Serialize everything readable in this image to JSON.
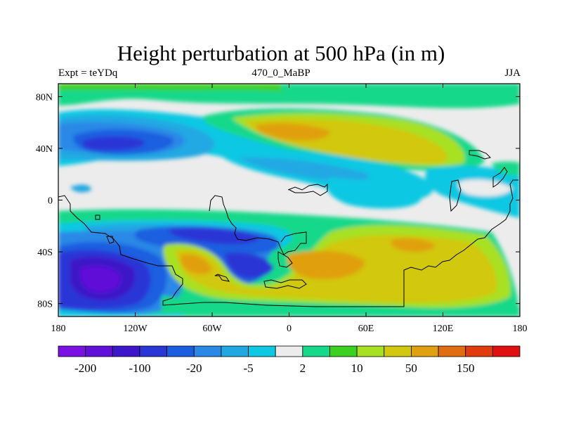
{
  "header": {
    "title": "Height perturbation at 500 hPa (in m)",
    "left_label": "Expt = teYDq",
    "center_label": "470_0_MaBP",
    "right_label": "JJA"
  },
  "map": {
    "projection": "cylindrical-equidistant",
    "lon_range": [
      -180,
      180
    ],
    "lat_range": [
      -90,
      90
    ],
    "x_ticks": [
      {
        "lon": -180,
        "label": "180"
      },
      {
        "lon": -120,
        "label": "120W"
      },
      {
        "lon": -60,
        "label": "60W"
      },
      {
        "lon": 0,
        "label": "0"
      },
      {
        "lon": 60,
        "label": "60E"
      },
      {
        "lon": 120,
        "label": "120E"
      },
      {
        "lon": 180,
        "label": "180"
      }
    ],
    "y_ticks": [
      {
        "lat": 80,
        "label": "80N"
      },
      {
        "lat": 40,
        "label": "40N"
      },
      {
        "lat": 0,
        "label": "0"
      },
      {
        "lat": -40,
        "label": "40S"
      },
      {
        "lat": -80,
        "label": "80S"
      }
    ],
    "coastline_color": "#000000"
  },
  "colorbar": {
    "colors": [
      "#7a10e4",
      "#6010d8",
      "#3c16c8",
      "#2a36d6",
      "#1c5ee0",
      "#2a88e6",
      "#20a8e2",
      "#10c8e2",
      "#ececec",
      "#14d88a",
      "#3cd020",
      "#a8e024",
      "#d2c810",
      "#e0a010",
      "#e06e10",
      "#e03c10",
      "#e01010"
    ],
    "labels": [
      "-200",
      "-100",
      "-20",
      "-5",
      "2",
      "10",
      "50",
      "150"
    ],
    "label_positions": [
      1,
      3,
      5,
      7,
      9,
      11,
      13,
      15
    ]
  },
  "chart_data": {
    "type": "heatmap",
    "title": "Height perturbation at 500 hPa (in m)",
    "subtitle_left": "Expt = teYDq",
    "subtitle_center": "470_0_MaBP",
    "subtitle_right": "JJA",
    "levels": [
      -200,
      -100,
      -20,
      -5,
      2,
      10,
      50,
      150
    ],
    "regions": [
      {
        "name": "north polar green band",
        "lon": [
          -180,
          180
        ],
        "lat": [
          78,
          90
        ],
        "level": "2 to 10"
      },
      {
        "name": "north pacific negative center",
        "lon": [
          -170,
          -100
        ],
        "lat": [
          30,
          55
        ],
        "level": "-100 to -20"
      },
      {
        "name": "eurasia positive ridge",
        "lon": [
          -20,
          130
        ],
        "lat": [
          25,
          70
        ],
        "level": "10 to 50"
      },
      {
        "name": "tropical south america negative",
        "lon": [
          -100,
          -30
        ],
        "lat": [
          -45,
          -15
        ],
        "level": "-20 to -5"
      },
      {
        "name": "south pacific negative center",
        "lon": [
          -180,
          -90
        ],
        "lat": [
          -85,
          -35
        ],
        "level": "-200 to -100"
      },
      {
        "name": "south atlantic-indian positive",
        "lon": [
          -100,
          160
        ],
        "lat": [
          -85,
          -25
        ],
        "level": "50 to 150"
      }
    ]
  }
}
